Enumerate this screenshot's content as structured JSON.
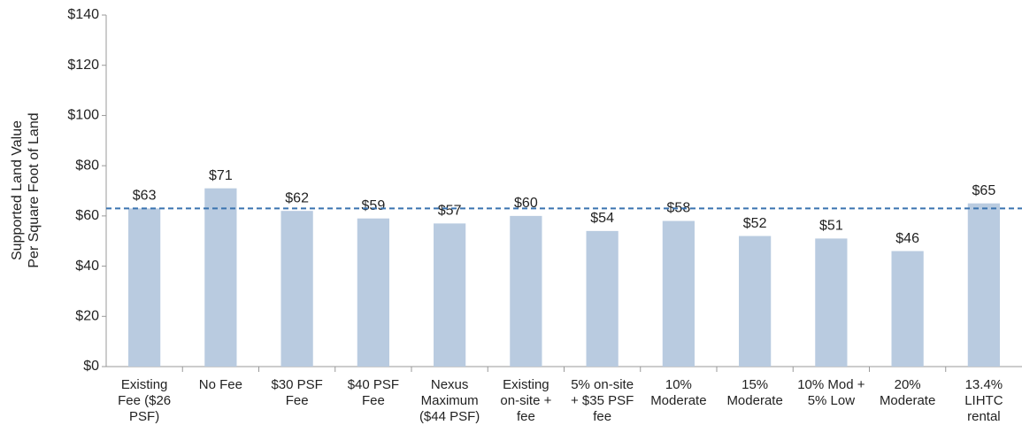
{
  "chart_data": {
    "type": "bar",
    "ylabel": [
      "Supported Land Value",
      "Per Square Foot of Land"
    ],
    "categories": [
      "Existing Fee ($26 PSF)",
      "No Fee",
      "$30 PSF Fee",
      "$40 PSF Fee",
      "Nexus Maximum ($44 PSF)",
      "Existing on-site + fee",
      "5% on-site + $35 PSF fee",
      "10% Moderate",
      "15% Moderate",
      "10% Mod + 5% Low",
      "20% Moderate",
      "13.4% LIHTC rental"
    ],
    "values": [
      63,
      71,
      62,
      59,
      57,
      60,
      54,
      58,
      52,
      51,
      46,
      65
    ],
    "value_labels": [
      "$63",
      "$71",
      "$62",
      "$59",
      "$57",
      "$60",
      "$54",
      "$58",
      "$52",
      "$51",
      "$46",
      "$65"
    ],
    "color": "#b9cbe0",
    "ylim": [
      0,
      140
    ],
    "yticks": [
      {
        "value": 0,
        "label": "$0"
      },
      {
        "value": 20,
        "label": "$20"
      },
      {
        "value": 40,
        "label": "$40"
      },
      {
        "value": 60,
        "label": "$60"
      },
      {
        "value": 80,
        "label": "$80"
      },
      {
        "value": 100,
        "label": "$100"
      },
      {
        "value": 120,
        "label": "$120"
      },
      {
        "value": 140,
        "label": "$140"
      }
    ],
    "reference_line": {
      "value": 63,
      "color": "#3a73b0",
      "style": "dashed"
    },
    "grid": false
  }
}
